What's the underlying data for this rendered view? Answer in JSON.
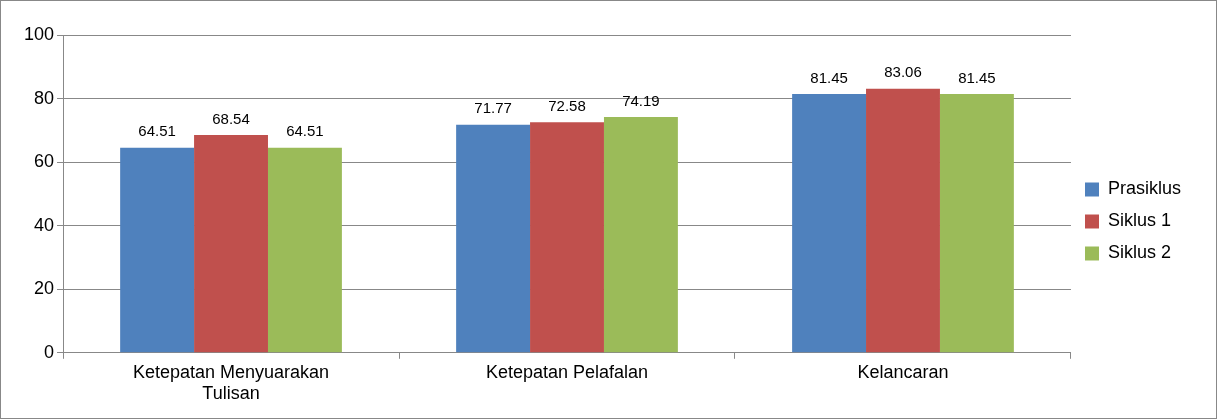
{
  "chart_data": {
    "type": "bar",
    "categories": [
      "Ketepatan Menyuarakan Tulisan",
      "Ketepatan Pelafalan",
      "Kelancaran"
    ],
    "series": [
      {
        "name": "Prasiklus",
        "color": "#4f81bd",
        "values": [
          64.51,
          71.77,
          81.45
        ]
      },
      {
        "name": "Siklus 1",
        "color": "#c0504d",
        "values": [
          68.54,
          72.58,
          83.06
        ]
      },
      {
        "name": "Siklus 2",
        "color": "#9bbb59",
        "values": [
          64.51,
          74.19,
          81.45
        ]
      }
    ],
    "ylim": [
      0,
      100
    ],
    "yticks": [
      0,
      20,
      40,
      60,
      80,
      100
    ],
    "grid": "y",
    "legend": "right",
    "data_labels": true
  }
}
